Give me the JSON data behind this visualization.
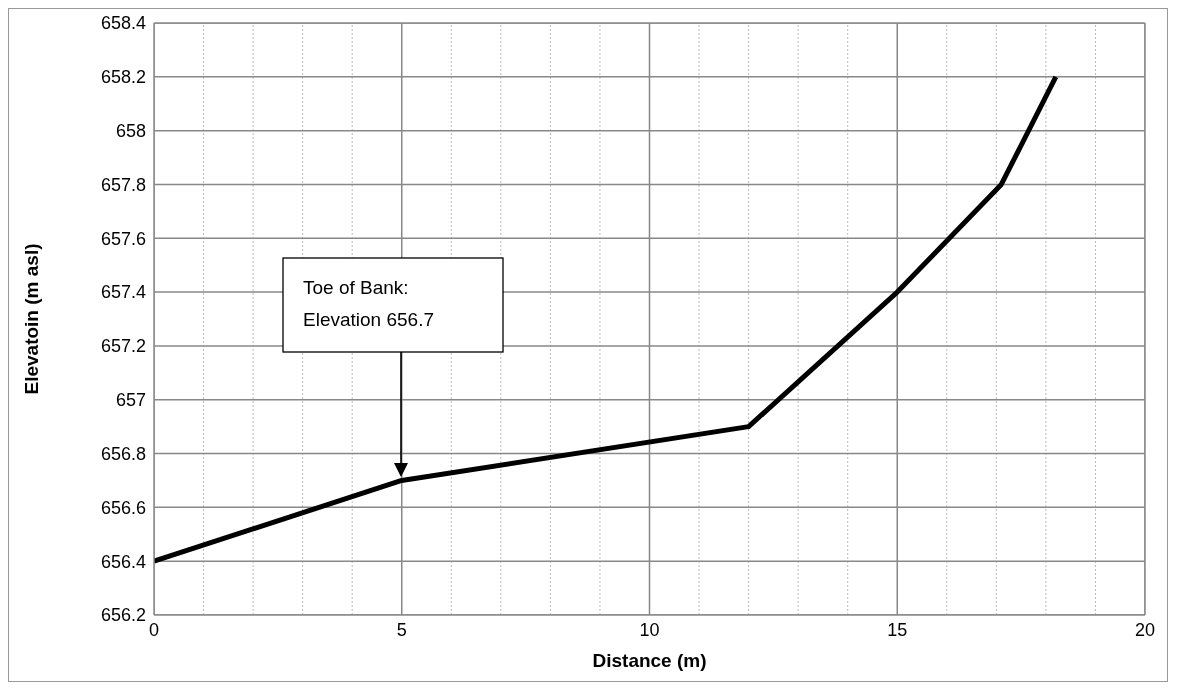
{
  "chart_data": {
    "type": "line",
    "xlabel": "Distance (m)",
    "ylabel": "Elevatoin (m asl)",
    "x": [
      0,
      5,
      12,
      15,
      17.1,
      18.2
    ],
    "series": [
      {
        "color": "#000000",
        "values": [
          656.4,
          656.7,
          656.9,
          657.4,
          657.8,
          658.2
        ]
      }
    ],
    "xlim": [
      0,
      20
    ],
    "xticks": [
      0,
      {
        "value": 1,
        "label": null
      },
      {
        "value": 2,
        "label": null
      },
      {
        "value": 3,
        "label": null
      },
      {
        "value": 4,
        "label": null
      },
      5,
      {
        "value": 6,
        "label": null
      },
      {
        "value": 7,
        "label": null
      },
      {
        "value": 8,
        "label": null
      },
      {
        "value": 9,
        "label": null
      },
      10,
      {
        "value": 11,
        "label": null
      },
      {
        "value": 12,
        "label": null
      },
      {
        "value": 13,
        "label": null
      },
      {
        "value": 14,
        "label": null
      },
      15,
      {
        "value": 16,
        "label": null
      },
      {
        "value": 17,
        "label": null
      },
      {
        "value": 18,
        "label": null
      },
      {
        "value": 19,
        "label": null
      },
      20
    ],
    "ylim": [
      656.2,
      658.4
    ],
    "yticks": [
      656.2,
      656.4,
      656.6,
      656.8,
      657,
      657.2,
      657.4,
      657.6,
      657.8,
      658,
      658.2,
      658.4
    ],
    "grid": true,
    "annotations": [
      "Toe of Bank:\nElevation 656.7"
    ]
  }
}
